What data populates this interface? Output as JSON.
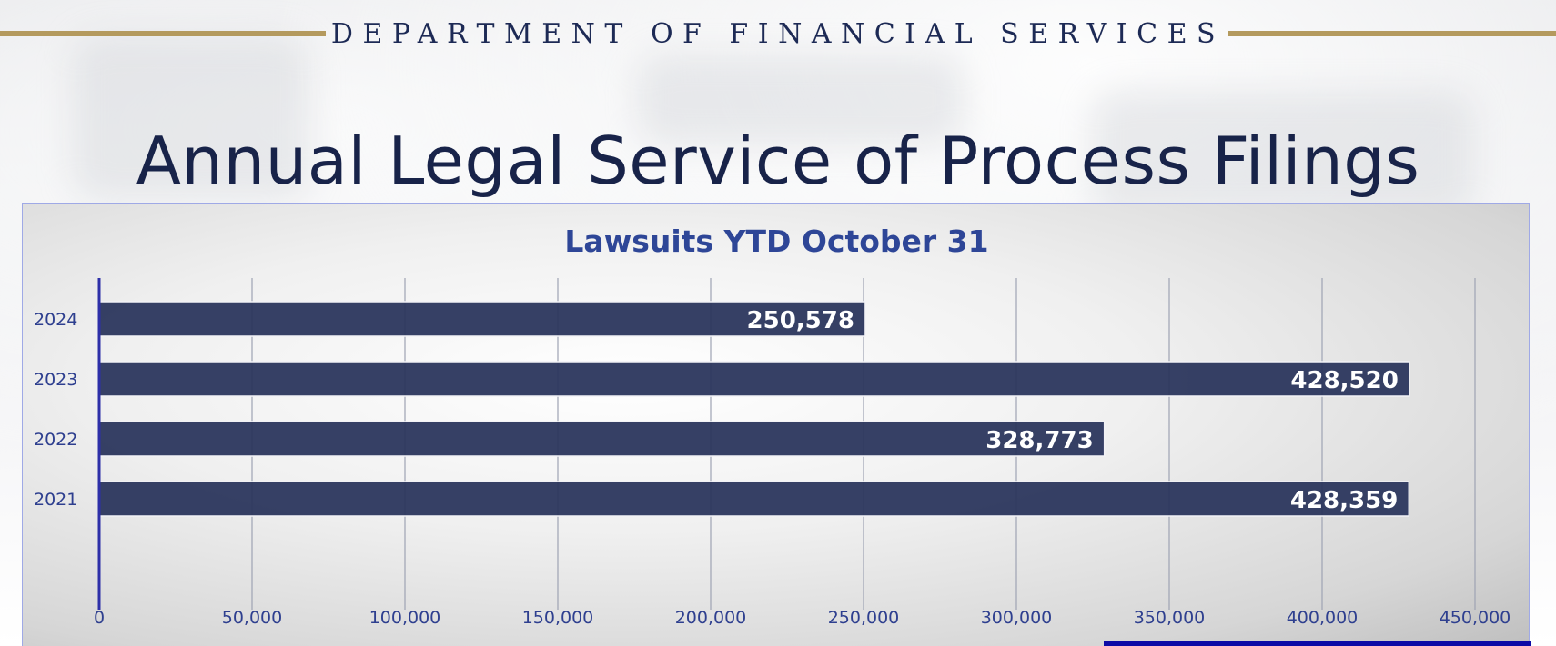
{
  "header": {
    "department": "DEPARTMENT OF FINANCIAL SERVICES",
    "title": "Annual Legal Service of Process Filings"
  },
  "colors": {
    "gold_rule": "#b49a5e",
    "bar_fill": "#2b365d",
    "axis_text": "#2e3f8f",
    "title_navy": "#182349"
  },
  "chart_data": {
    "type": "bar",
    "orientation": "horizontal",
    "title": "Lawsuits YTD October 31",
    "categories": [
      "2024",
      "2023",
      "2022",
      "2021"
    ],
    "values": [
      250578,
      428520,
      328773,
      428359
    ],
    "data_labels": [
      "250,578",
      "428,520",
      "328,773",
      "428,359"
    ],
    "xlabel": "",
    "ylabel": "",
    "xlim": [
      0,
      450000
    ],
    "x_ticks": [
      0,
      50000,
      100000,
      150000,
      200000,
      250000,
      300000,
      350000,
      400000,
      450000
    ],
    "x_tick_labels": [
      "0",
      "50,000",
      "100,000",
      "150,000",
      "200,000",
      "250,000",
      "300,000",
      "350,000",
      "400,000",
      "450,000"
    ],
    "grid": true,
    "legend": "none"
  }
}
